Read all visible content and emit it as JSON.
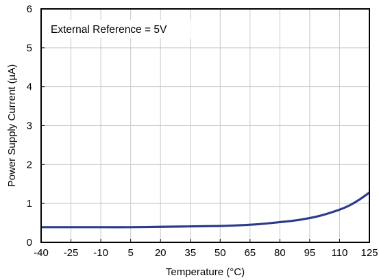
{
  "chart_data": {
    "type": "line",
    "title": "",
    "xlabel": "Temperature (°C)",
    "ylabel": "Power Supply Current (µA)",
    "annotation": "External Reference = 5V",
    "xlim": [
      -40,
      125
    ],
    "ylim": [
      0,
      6
    ],
    "x_ticks": [
      -40,
      -25,
      -10,
      5,
      20,
      35,
      50,
      65,
      80,
      95,
      110,
      125
    ],
    "y_ticks": [
      0,
      1,
      2,
      3,
      4,
      5,
      6
    ],
    "grid": true,
    "series": [
      {
        "x": [
          -40,
          -25,
          -10,
          5,
          20,
          35,
          50,
          60,
          70,
          80,
          90,
          100,
          110,
          115,
          120,
          125
        ],
        "y": [
          0.39,
          0.39,
          0.39,
          0.39,
          0.4,
          0.41,
          0.42,
          0.44,
          0.47,
          0.52,
          0.58,
          0.68,
          0.84,
          0.95,
          1.1,
          1.28
        ]
      }
    ],
    "colors": {
      "line": "#2e3a8c",
      "grid": "#c8c8c8",
      "frame": "#000000"
    }
  }
}
